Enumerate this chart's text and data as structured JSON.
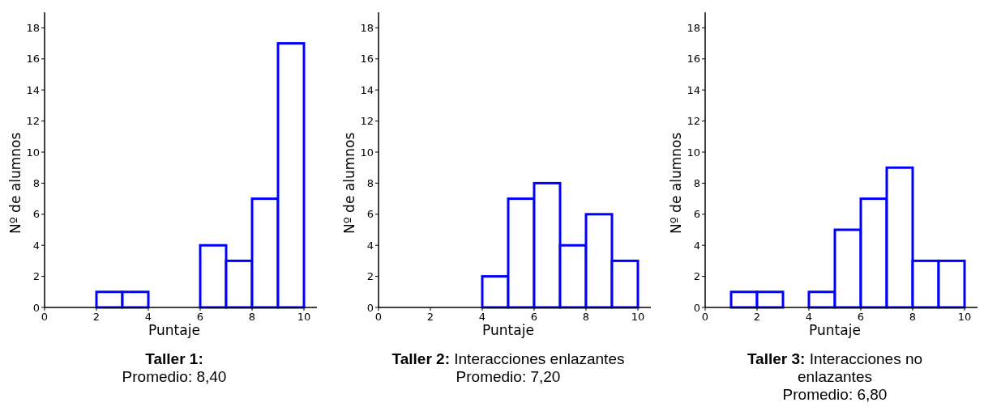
{
  "chart_data": [
    {
      "type": "histogram",
      "title": "Taller 1:",
      "subtitle": "Promedio: 8,40",
      "xlabel": "Puntaje",
      "ylabel": "Nº de alumnos",
      "bins": [
        0,
        1,
        2,
        3,
        4,
        5,
        6,
        7,
        8,
        9,
        10
      ],
      "values": [
        0,
        0,
        1,
        1,
        0,
        0,
        4,
        3,
        7,
        17
      ],
      "color": "#0000ff",
      "xlim": [
        0,
        10.5
      ],
      "ylim": [
        0,
        19
      ],
      "xticks": [
        0,
        2,
        4,
        6,
        8,
        10
      ],
      "yticks": [
        0,
        2,
        4,
        6,
        8,
        10,
        12,
        14,
        16,
        18
      ],
      "grid": false
    },
    {
      "type": "histogram",
      "title": "Taller 2: Interacciones enlazantes",
      "subtitle": "Promedio: 7,20",
      "xlabel": "Puntaje",
      "ylabel": "Nº de alumnos",
      "bins": [
        0,
        1,
        2,
        3,
        4,
        5,
        6,
        7,
        8,
        9,
        10
      ],
      "values": [
        0,
        0,
        0,
        0,
        2,
        7,
        8,
        4,
        6,
        3
      ],
      "color": "#0000ff",
      "xlim": [
        0,
        10.5
      ],
      "ylim": [
        0,
        19
      ],
      "xticks": [
        0,
        2,
        4,
        6,
        8,
        10
      ],
      "yticks": [
        0,
        2,
        4,
        6,
        8,
        10,
        12,
        14,
        16,
        18
      ],
      "grid": false
    },
    {
      "type": "histogram",
      "title": "Taller 3: Interacciones no enlazantes",
      "subtitle": "Promedio: 6,80",
      "xlabel": "Puntaje",
      "ylabel": "Nº de alumnos",
      "bins": [
        0,
        1,
        2,
        3,
        4,
        5,
        6,
        7,
        8,
        9,
        10
      ],
      "values": [
        0,
        1,
        1,
        0,
        1,
        5,
        7,
        9,
        3,
        3
      ],
      "color": "#0000ff",
      "xlim": [
        0,
        10.5
      ],
      "ylim": [
        0,
        19
      ],
      "xticks": [
        0,
        2,
        4,
        6,
        8,
        10
      ],
      "yticks": [
        0,
        2,
        4,
        6,
        8,
        10,
        12,
        14,
        16,
        18
      ],
      "grid": false
    }
  ]
}
